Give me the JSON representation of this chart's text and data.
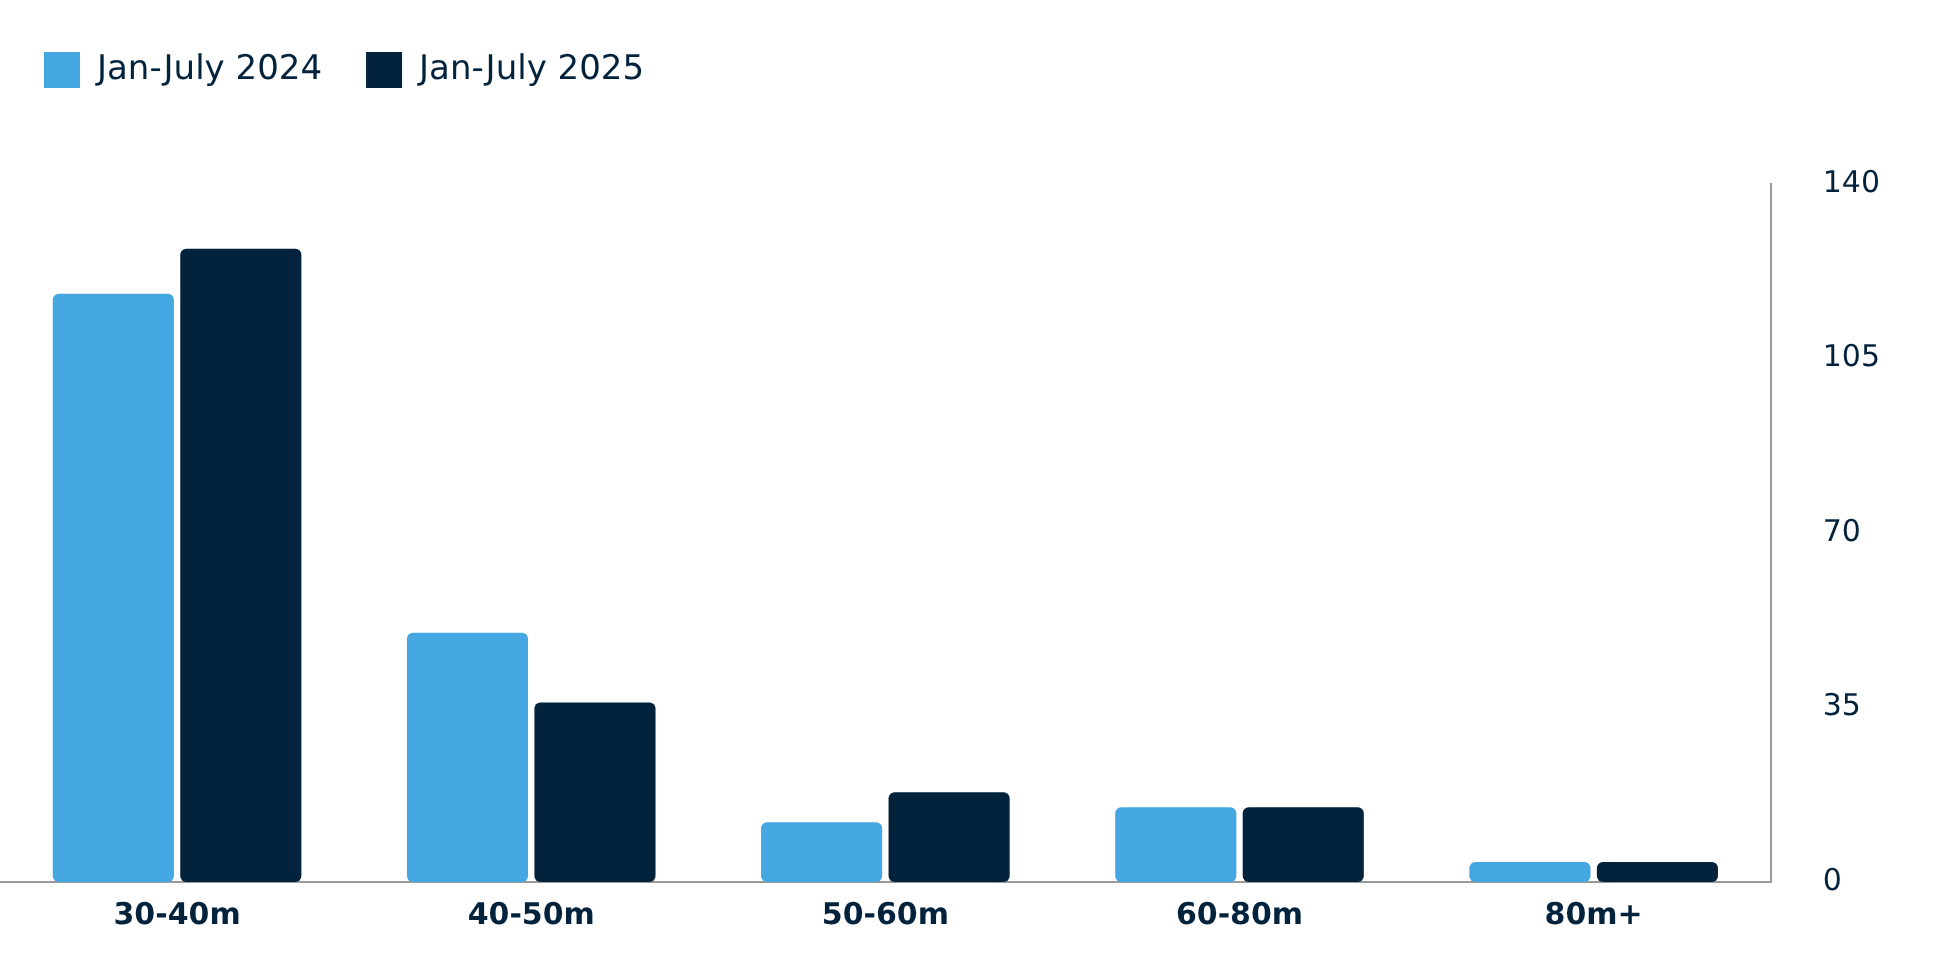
{
  "chart_data": {
    "type": "bar",
    "categories": [
      "30-40m",
      "40-50m",
      "50-60m",
      "60-80m",
      "80m+"
    ],
    "series": [
      {
        "name": "Jan-July 2024",
        "color": "#44a7e2",
        "values": [
          118,
          50,
          12,
          15,
          4
        ]
      },
      {
        "name": "Jan-July 2025",
        "color": "#03223c",
        "values": [
          127,
          36,
          18,
          15,
          4
        ]
      }
    ],
    "ylim": [
      0,
      140
    ],
    "yticks": [
      0,
      35,
      70,
      105,
      140
    ],
    "grid": false,
    "legend": "top left"
  }
}
